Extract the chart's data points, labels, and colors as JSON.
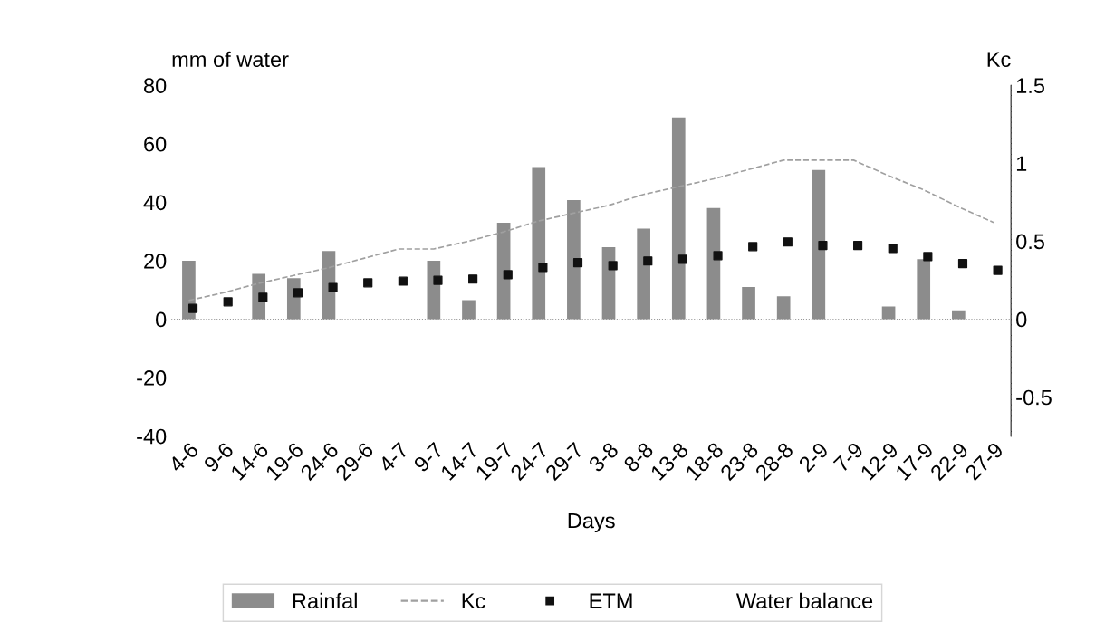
{
  "chart_data": {
    "type": "bar",
    "xlabel": "Days",
    "ylabel": "mm of water",
    "y2label": "Kc",
    "categories": [
      "4-6",
      "9-6",
      "14-6",
      "19-6",
      "24-6",
      "29-6",
      "4-7",
      "9-7",
      "14-7",
      "19-7",
      "24-7",
      "29-7",
      "3-8",
      "8-8",
      "13-8",
      "18-8",
      "23-8",
      "28-8",
      "2-9",
      "7-9",
      "12-9",
      "17-9",
      "22-9",
      "27-9"
    ],
    "series": [
      {
        "name": "Rainfal",
        "color": "#8c8c8c",
        "values": [
          20,
          0,
          15.5,
          14,
          23.3,
          0,
          0,
          20,
          6.5,
          33,
          52,
          40.7,
          24.6,
          31,
          69,
          38,
          11,
          7.8,
          51,
          0,
          4.3,
          20.5,
          3,
          0
        ]
      },
      {
        "name": "Kc",
        "type": "line",
        "axis": "y2",
        "color": "#a0a0a0",
        "line_style": "dashed",
        "values": [
          0.12,
          0.17,
          0.23,
          0.28,
          0.33,
          0.39,
          0.45,
          0.45,
          0.5,
          0.56,
          0.63,
          0.68,
          0.73,
          0.8,
          0.85,
          0.9,
          0.96,
          1.02,
          1.02,
          1.02,
          0.92,
          0.83,
          0.72,
          0.62
        ]
      },
      {
        "name": "ETM",
        "type": "scatter",
        "marker": "square",
        "color": "#111111",
        "values": [
          3.7,
          5.9,
          7.5,
          9,
          10.8,
          12.4,
          13,
          13.3,
          13.7,
          15.2,
          17.7,
          19.3,
          18.3,
          19.9,
          20.5,
          21.7,
          24.8,
          26.4,
          25.2,
          25.2,
          24.2,
          21.4,
          19,
          16.7
        ]
      },
      {
        "name": "Water balance",
        "type": "line",
        "values": [
          null,
          null,
          null,
          null,
          null,
          null,
          null,
          null,
          null,
          null,
          null,
          null,
          null,
          null,
          null,
          null,
          null,
          null,
          null,
          null,
          null,
          null,
          null,
          null
        ]
      }
    ],
    "ylim": [
      -40,
      80
    ],
    "yticks": [
      -40,
      -20,
      0,
      20,
      40,
      60,
      80
    ],
    "y2lim": [
      -0.75,
      1.5
    ],
    "y2ticks": [
      -0.5,
      0,
      0.5,
      1,
      1.5
    ],
    "ref_lines": [
      {
        "axis": "y",
        "value": 0,
        "color": "#999999",
        "line_style": "dotted"
      }
    ],
    "grid": false,
    "legend": "bottom"
  }
}
